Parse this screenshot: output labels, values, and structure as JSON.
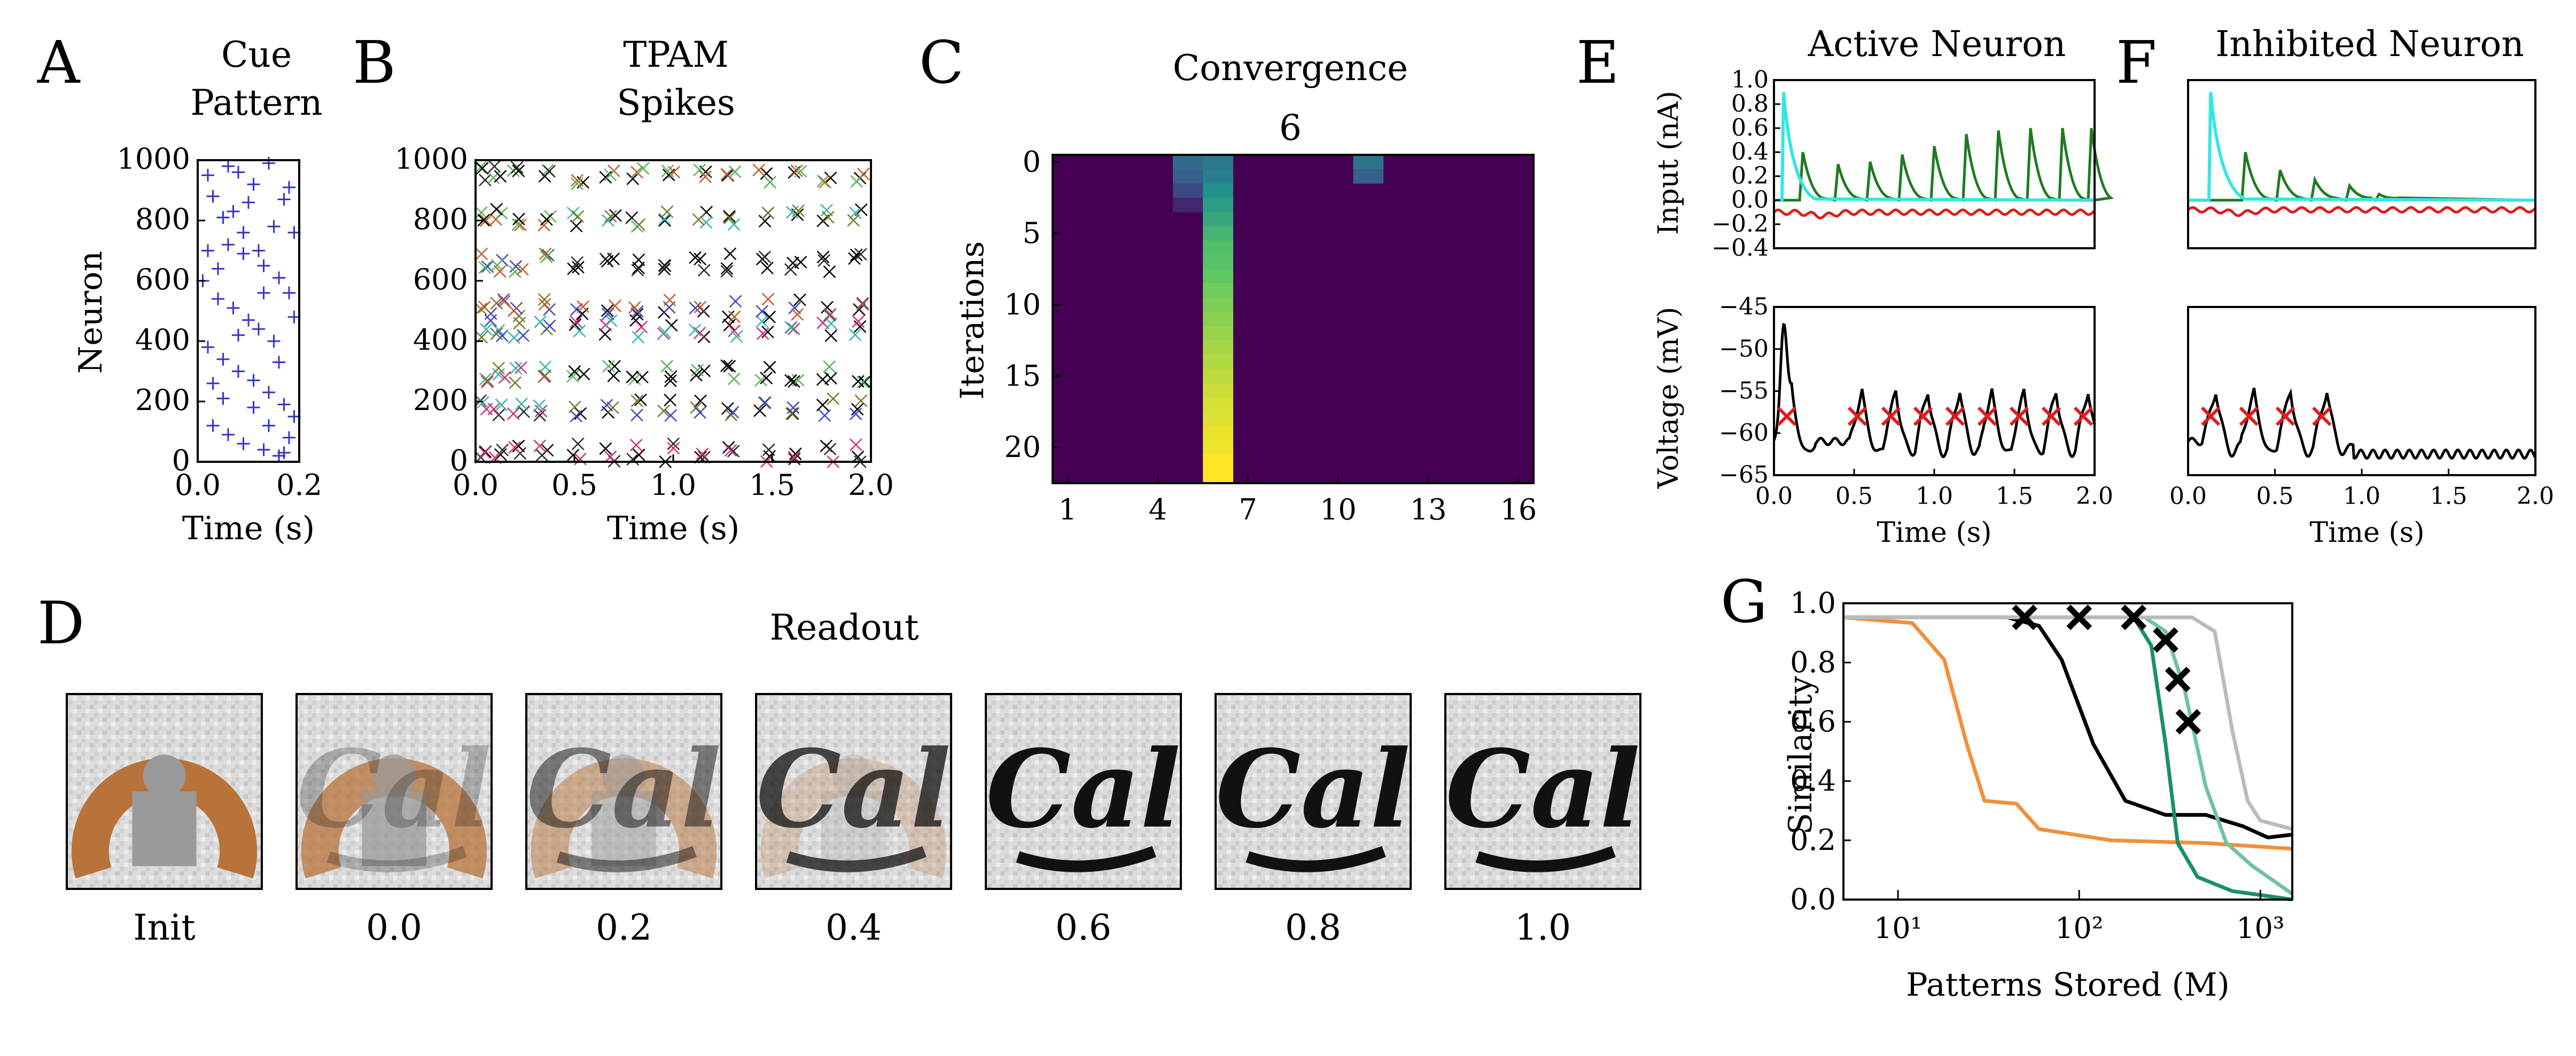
{
  "panel_letters": [
    "A",
    "B",
    "C",
    "D",
    "E",
    "F",
    "G"
  ],
  "colors": {
    "cue_marker": "#3333cc",
    "heatmap_bg": "#440154",
    "trace_green": "#1f7a1f",
    "trace_cyan": "#33e6e6",
    "trace_red": "#e01b1b",
    "trace_black": "#000000",
    "spike_marker": "#e01b1b",
    "readout_brown": "#b8733a",
    "readout_gray": "#9a9a9a"
  },
  "chart_data": [
    {
      "id": "A",
      "type": "scatter",
      "title": "Cue\nPattern",
      "xlabel": "Time (s)",
      "ylabel": "Neuron",
      "xlim": [
        0,
        0.2
      ],
      "ylim": [
        0,
        1000
      ],
      "xticks": [
        "0.0",
        "0.2"
      ],
      "yticks": [
        "0",
        "200",
        "400",
        "600",
        "800",
        "1000"
      ],
      "marker": "+",
      "points": [
        [
          0.02,
          950
        ],
        [
          0.03,
          880
        ],
        [
          0.05,
          810
        ],
        [
          0.08,
          960
        ],
        [
          0.11,
          920
        ],
        [
          0.14,
          990
        ],
        [
          0.17,
          870
        ],
        [
          0.19,
          760
        ],
        [
          0.06,
          720
        ],
        [
          0.09,
          690
        ],
        [
          0.13,
          650
        ],
        [
          0.16,
          610
        ],
        [
          0.18,
          560
        ],
        [
          0.04,
          540
        ],
        [
          0.07,
          510
        ],
        [
          0.1,
          470
        ],
        [
          0.12,
          440
        ],
        [
          0.15,
          400
        ],
        [
          0.02,
          380
        ],
        [
          0.05,
          340
        ],
        [
          0.08,
          300
        ],
        [
          0.11,
          270
        ],
        [
          0.14,
          230
        ],
        [
          0.17,
          190
        ],
        [
          0.19,
          150
        ],
        [
          0.03,
          120
        ],
        [
          0.06,
          90
        ],
        [
          0.09,
          60
        ],
        [
          0.13,
          40
        ],
        [
          0.16,
          20
        ],
        [
          0.18,
          80
        ],
        [
          0.01,
          600
        ],
        [
          0.04,
          640
        ],
        [
          0.12,
          700
        ],
        [
          0.15,
          780
        ],
        [
          0.07,
          830
        ],
        [
          0.1,
          860
        ],
        [
          0.18,
          910
        ],
        [
          0.03,
          260
        ],
        [
          0.16,
          330
        ],
        [
          0.11,
          180
        ],
        [
          0.05,
          210
        ],
        [
          0.14,
          120
        ],
        [
          0.08,
          420
        ],
        [
          0.19,
          480
        ],
        [
          0.02,
          700
        ],
        [
          0.13,
          560
        ],
        [
          0.06,
          980
        ],
        [
          0.17,
          30
        ],
        [
          0.09,
          760
        ]
      ]
    },
    {
      "id": "B",
      "type": "scatter",
      "title": "TPAM\nSpikes",
      "xlabel": "Time (s)",
      "xlim": [
        0,
        2.0
      ],
      "ylim": [
        0,
        1000
      ],
      "xticks": [
        "0.0",
        "0.5",
        "1.0",
        "1.5",
        "2.0"
      ],
      "yticks": [
        "0",
        "200",
        "400",
        "600",
        "800",
        "1000"
      ],
      "marker": "x",
      "row_neurons": [
        30,
        180,
        290,
        440,
        510,
        660,
        810,
        950
      ],
      "spike_times": [
        0.05,
        0.12,
        0.22,
        0.35,
        0.52,
        0.68,
        0.82,
        0.98,
        1.14,
        1.3,
        1.46,
        1.62,
        1.78,
        1.94
      ]
    },
    {
      "id": "C",
      "type": "heatmap",
      "title": "Convergence",
      "annotation": "6",
      "ylabel": "Iterations",
      "xticks": [
        "1",
        "4",
        "7",
        "10",
        "13",
        "16"
      ],
      "yticks": [
        "0",
        "5",
        "10",
        "15",
        "20"
      ],
      "cols": 16,
      "rows": 23,
      "cells": [
        {
          "col": 5,
          "row": 0,
          "v": 0.35
        },
        {
          "col": 6,
          "row": 0,
          "v": 0.4
        },
        {
          "col": 5,
          "row": 1,
          "v": 0.3
        },
        {
          "col": 6,
          "row": 1,
          "v": 0.42
        },
        {
          "col": 5,
          "row": 2,
          "v": 0.22
        },
        {
          "col": 6,
          "row": 2,
          "v": 0.5
        },
        {
          "col": 5,
          "row": 3,
          "v": 0.12
        },
        {
          "col": 6,
          "row": 3,
          "v": 0.55
        },
        {
          "col": 6,
          "row": 4,
          "v": 0.6
        },
        {
          "col": 6,
          "row": 5,
          "v": 0.65
        },
        {
          "col": 6,
          "row": 6,
          "v": 0.7
        },
        {
          "col": 6,
          "row": 7,
          "v": 0.72
        },
        {
          "col": 6,
          "row": 8,
          "v": 0.75
        },
        {
          "col": 6,
          "row": 9,
          "v": 0.78
        },
        {
          "col": 6,
          "row": 10,
          "v": 0.8
        },
        {
          "col": 6,
          "row": 11,
          "v": 0.82
        },
        {
          "col": 6,
          "row": 12,
          "v": 0.84
        },
        {
          "col": 6,
          "row": 13,
          "v": 0.86
        },
        {
          "col": 6,
          "row": 14,
          "v": 0.88
        },
        {
          "col": 6,
          "row": 15,
          "v": 0.9
        },
        {
          "col": 6,
          "row": 16,
          "v": 0.92
        },
        {
          "col": 6,
          "row": 17,
          "v": 0.94
        },
        {
          "col": 6,
          "row": 18,
          "v": 0.95
        },
        {
          "col": 6,
          "row": 19,
          "v": 0.97
        },
        {
          "col": 6,
          "row": 20,
          "v": 0.98
        },
        {
          "col": 6,
          "row": 21,
          "v": 1.0
        },
        {
          "col": 6,
          "row": 22,
          "v": 1.0
        },
        {
          "col": 11,
          "row": 0,
          "v": 0.38
        },
        {
          "col": 11,
          "row": 1,
          "v": 0.3
        }
      ]
    },
    {
      "id": "E",
      "title": "Active Neuron",
      "input": {
        "type": "line",
        "ylabel": "Input (nA)",
        "xlim": [
          0,
          2.0
        ],
        "ylim": [
          -0.4,
          1.0
        ],
        "yticks": [
          "1.0",
          "0.8",
          "0.6",
          "0.4",
          "0.2",
          "0.0",
          "−0.2",
          "−0.4"
        ],
        "cyan_peak": [
          0.06,
          0.9
        ],
        "green_peaks": [
          [
            0.18,
            0.4
          ],
          [
            0.4,
            0.3
          ],
          [
            0.6,
            0.32
          ],
          [
            0.8,
            0.38
          ],
          [
            1.0,
            0.45
          ],
          [
            1.2,
            0.55
          ],
          [
            1.4,
            0.58
          ],
          [
            1.6,
            0.6
          ],
          [
            1.8,
            0.6
          ],
          [
            1.98,
            0.6
          ]
        ],
        "red_level": -0.1
      },
      "voltage": {
        "type": "line",
        "ylabel": "Voltage (mV)",
        "xlabel": "Time (s)",
        "xlim": [
          0,
          2.0
        ],
        "ylim": [
          -65,
          -45
        ],
        "xticks": [
          "0.0",
          "0.5",
          "1.0",
          "1.5",
          "2.0"
        ],
        "yticks": [
          "−45",
          "−50",
          "−55",
          "−60",
          "−65"
        ],
        "threshold": -58,
        "spikes": [
          0.08,
          0.52,
          0.73,
          0.93,
          1.13,
          1.33,
          1.53,
          1.73,
          1.93
        ]
      }
    },
    {
      "id": "F",
      "title": "Inhibited Neuron",
      "input": {
        "type": "line",
        "xlim": [
          0,
          2.0
        ],
        "ylim": [
          -0.4,
          1.0
        ],
        "cyan_peak": [
          0.13,
          0.9
        ],
        "green_peaks": [
          [
            0.33,
            0.4
          ],
          [
            0.53,
            0.25
          ],
          [
            0.73,
            0.17
          ],
          [
            0.93,
            0.12
          ],
          [
            1.1,
            0.05
          ]
        ],
        "red_level": -0.08
      },
      "voltage": {
        "type": "line",
        "xlabel": "Time (s)",
        "xlim": [
          0,
          2.0
        ],
        "ylim": [
          -65,
          -45
        ],
        "xticks": [
          "0.0",
          "0.5",
          "1.0",
          "1.5",
          "2.0"
        ],
        "threshold": -58,
        "spikes": [
          0.13,
          0.35,
          0.56,
          0.77
        ]
      }
    },
    {
      "id": "G",
      "type": "line",
      "xlabel": "Patterns Stored (M)",
      "ylabel": "Similarity",
      "xscale": "log",
      "xlim": [
        5,
        1500
      ],
      "ylim": [
        0,
        1.05
      ],
      "xticks": [
        "10¹",
        "10²",
        "10³"
      ],
      "yticks": [
        "0.0",
        "0.2",
        "0.4",
        "0.6",
        "0.8",
        "1.0"
      ],
      "series": [
        {
          "color": "#000000",
          "points": [
            [
              5,
              1.0
            ],
            [
              40,
              1.0
            ],
            [
              60,
              0.97
            ],
            [
              80,
              0.85
            ],
            [
              120,
              0.55
            ],
            [
              180,
              0.35
            ],
            [
              300,
              0.3
            ],
            [
              500,
              0.3
            ],
            [
              800,
              0.26
            ],
            [
              1100,
              0.22
            ],
            [
              1500,
              0.23
            ]
          ]
        },
        {
          "color": "#f0903a",
          "points": [
            [
              5,
              1.0
            ],
            [
              12,
              0.98
            ],
            [
              18,
              0.85
            ],
            [
              24,
              0.55
            ],
            [
              30,
              0.35
            ],
            [
              45,
              0.34
            ],
            [
              60,
              0.25
            ],
            [
              150,
              0.21
            ],
            [
              500,
              0.2
            ],
            [
              1500,
              0.18
            ]
          ]
        },
        {
          "color": "#1a8f6a",
          "points": [
            [
              5,
              1.0
            ],
            [
              200,
              1.0
            ],
            [
              250,
              0.9
            ],
            [
              300,
              0.55
            ],
            [
              350,
              0.2
            ],
            [
              450,
              0.08
            ],
            [
              700,
              0.03
            ],
            [
              1500,
              0.0
            ]
          ]
        },
        {
          "color": "#6fc3a3",
          "points": [
            [
              5,
              1.0
            ],
            [
              230,
              1.0
            ],
            [
              300,
              0.95
            ],
            [
              380,
              0.75
            ],
            [
              500,
              0.4
            ],
            [
              650,
              0.2
            ],
            [
              900,
              0.12
            ],
            [
              1500,
              0.02
            ]
          ]
        },
        {
          "color": "#bbbbbb",
          "points": [
            [
              5,
              1.0
            ],
            [
              420,
              1.0
            ],
            [
              560,
              0.95
            ],
            [
              700,
              0.6
            ],
            [
              850,
              0.35
            ],
            [
              1000,
              0.28
            ],
            [
              1500,
              0.25
            ]
          ]
        }
      ],
      "markers": [
        [
          50,
          1.0
        ],
        [
          100,
          1.0
        ],
        [
          200,
          1.0
        ],
        [
          300,
          0.92
        ],
        [
          350,
          0.78
        ],
        [
          400,
          0.63
        ]
      ]
    }
  ],
  "readout": {
    "title": "Readout",
    "labels": [
      "Init",
      "0.0",
      "0.2",
      "0.4",
      "0.6",
      "0.8",
      "1.0"
    ],
    "image_text": "Cal"
  }
}
